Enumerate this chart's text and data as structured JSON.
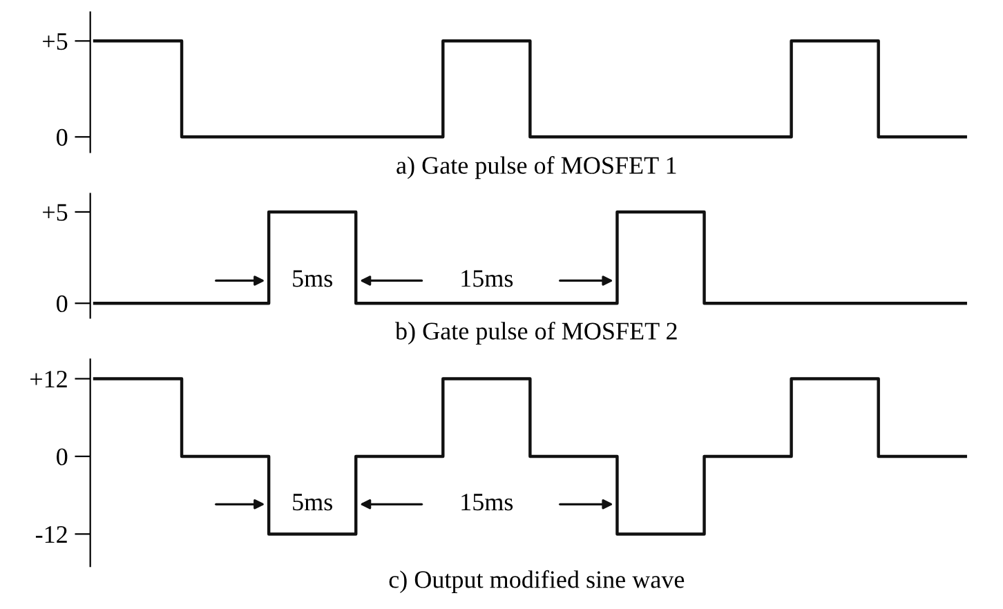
{
  "chart_data": [
    {
      "type": "step",
      "xlabel": "a) Gate pulse of MOSFET 1",
      "categories": [
        null,
        null,
        null,
        null,
        null,
        null,
        null,
        null,
        null,
        null,
        null
      ],
      "series": [
        {
          "color": "#111111",
          "values": [
            5,
            0,
            0,
            0,
            5,
            0,
            0,
            0,
            5,
            0,
            0
          ]
        }
      ],
      "ylim": [
        -0.8,
        6.5
      ],
      "yticks": [
        {
          "value": 5,
          "label": "+5"
        },
        0
      ],
      "tick_labels": "y",
      "grid": false,
      "legend": false
    },
    {
      "type": "step",
      "xlabel": "b) Gate pulse of MOSFET 2",
      "categories": [
        null,
        null,
        null,
        null,
        null,
        null,
        null,
        null,
        null,
        null,
        null
      ],
      "series": [
        {
          "color": "#111111",
          "values": [
            0,
            0,
            5,
            0,
            0,
            0,
            5,
            0,
            0,
            0,
            0
          ]
        }
      ],
      "annotations": [
        "5ms",
        "15ms"
      ],
      "ylim": [
        -0.8,
        6.0
      ],
      "yticks": [
        {
          "value": 5,
          "label": "+5"
        },
        0
      ],
      "tick_labels": "y",
      "grid": false,
      "legend": false
    },
    {
      "type": "step",
      "xlabel": "c) Output modified sine wave",
      "categories": [
        null,
        null,
        null,
        null,
        null,
        null,
        null,
        null,
        null,
        null,
        null
      ],
      "series": [
        {
          "color": "#111111",
          "values": [
            12,
            0,
            -12,
            0,
            12,
            0,
            -12,
            0,
            12,
            0,
            0
          ]
        }
      ],
      "annotations": [
        "5ms",
        "15ms"
      ],
      "ylim": [
        -17,
        15
      ],
      "yticks": [
        {
          "value": 12,
          "label": "+12"
        },
        0,
        {
          "value": -12,
          "label": "-12"
        }
      ],
      "tick_labels": "y",
      "grid": false,
      "legend": false
    }
  ]
}
